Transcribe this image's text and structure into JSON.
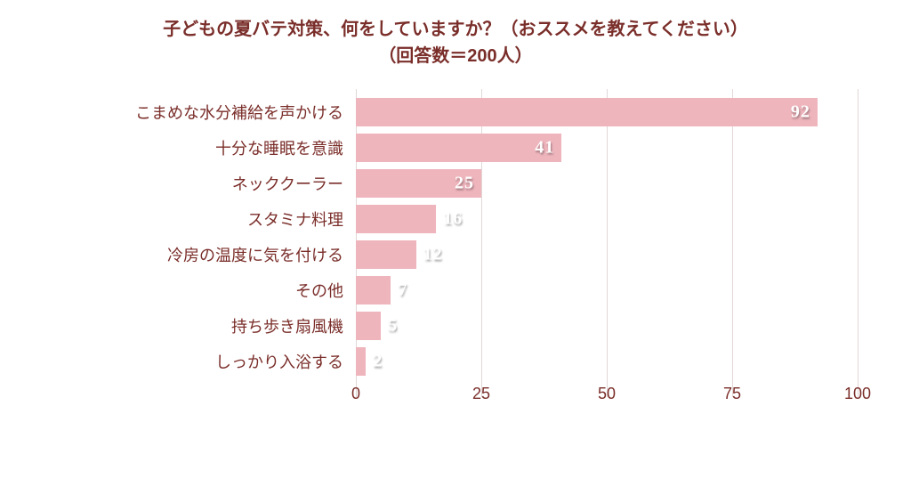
{
  "chart": {
    "type": "bar-horizontal",
    "title_line1": "子どもの夏バテ対策、何をしていますか？（おススメを教えてください）",
    "title_line2": "（回答数＝200人）",
    "title_color": "#7a2e2a",
    "title_fontsize": 20,
    "categories": [
      "こまめな水分補給を声かける",
      "十分な睡眠を意識",
      "ネッククーラー",
      "スタミナ料理",
      "冷房の温度に気を付ける",
      "その他",
      "持ち歩き扇風機",
      "しっかり入浴する"
    ],
    "values": [
      92,
      41,
      25,
      16,
      12,
      7,
      5,
      2
    ],
    "value_label_placement": [
      "inside",
      "inside",
      "inside",
      "outside",
      "outside",
      "outside",
      "outside",
      "outside"
    ],
    "bar_color": "#efb5bd",
    "value_label_color": "#ffffff",
    "value_label_shadow": "1px 2px 2px rgba(0,0,0,0.35)",
    "value_label_fontsize": 20,
    "ylabel_color": "#7a2e2a",
    "ylabel_fontsize": 18,
    "xlim": [
      0,
      100
    ],
    "xticks": [
      0,
      25,
      50,
      75,
      100
    ],
    "xtick_color": "#7a2e2a",
    "xtick_fontsize": 18,
    "grid_color": "#e2d7d6",
    "background": "#ffffff",
    "bar_row_height": 40,
    "bar_gap": 0
  }
}
